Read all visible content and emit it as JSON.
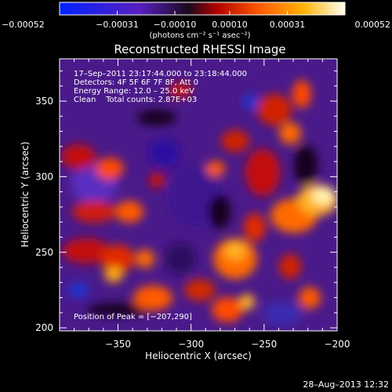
{
  "chart_data": {
    "type": "heatmap",
    "title": "Reconstructed RHESSI Image",
    "xlabel": "Heliocentric X (arcsec)",
    "ylabel": "Heliocentric Y (arcsec)",
    "xlim": [
      -390,
      -200
    ],
    "ylim": [
      198,
      378
    ],
    "x_ticks": [
      -350,
      -300,
      -250,
      -200
    ],
    "x_tick_labels": [
      "−350",
      "−300",
      "−250",
      "−200"
    ],
    "y_ticks": [
      200,
      250,
      300,
      350
    ],
    "y_tick_labels": [
      "200",
      "250",
      "300",
      "350"
    ],
    "annotations": [
      "17–Sep–2011 23:17:44.000 to 23:18:44.000",
      "Detectors: 4F 5F 6F 7F 8F, Att 0",
      "Energy Range: 12.0 – 25.0 keV",
      "Clean    Total counts: 2.87E+03"
    ],
    "peak_label": "Position of Peak = [−207,290]",
    "peak": [
      -207,
      290
    ],
    "colorbar": {
      "range": [
        -0.00052,
        0.00052
      ],
      "tick_values": [
        -0.00052,
        -0.00031,
        -0.0001,
        0.0001,
        0.00031,
        0.00052
      ],
      "tick_labels": [
        "−0.00052",
        "−0.00031",
        "−0.00010",
        "0.00010",
        "0.00031",
        "0.00052"
      ],
      "units": "(photons cm⁻² s⁻¹ asec⁻²)",
      "colors": [
        "#0022ff",
        "#5a1fbf",
        "#1a0a20",
        "#c00000",
        "#ff5a00",
        "#ffb000",
        "#fff6a0"
      ]
    }
  },
  "footer": {
    "timestamp": "28–Aug–2013 12:32"
  }
}
